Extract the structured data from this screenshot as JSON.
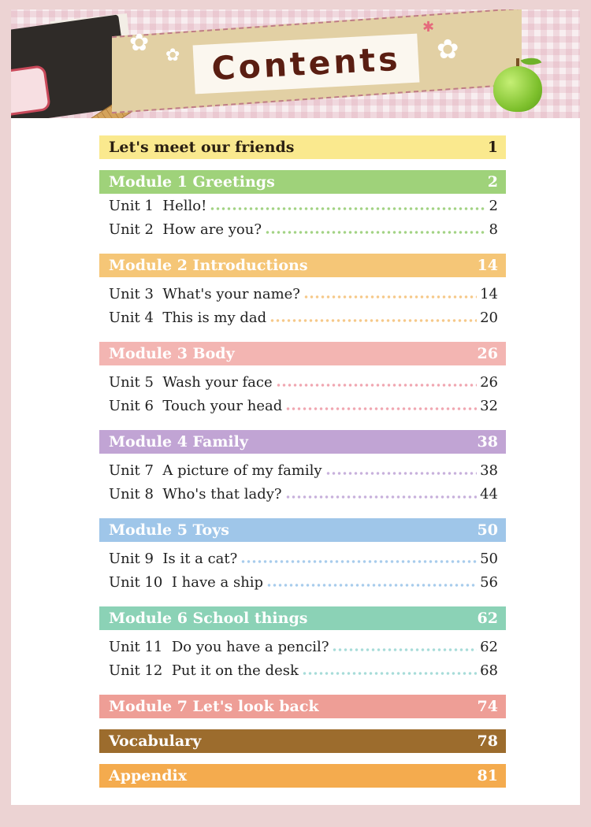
{
  "header": {
    "title": "Contents"
  },
  "toc": {
    "intro": {
      "label": "Let's meet our friends",
      "page": "1"
    },
    "modules": [
      {
        "label": "Module 1  Greetings",
        "page": "2",
        "units": [
          {
            "label": "Unit 1  Hello!",
            "page": "2"
          },
          {
            "label": "Unit 2  How are you?",
            "page": "8"
          }
        ]
      },
      {
        "label": "Module 2  Introductions",
        "page": "14",
        "units": [
          {
            "label": "Unit 3  What's your name?",
            "page": "14"
          },
          {
            "label": "Unit 4  This is my dad",
            "page": "20"
          }
        ]
      },
      {
        "label": "Module 3  Body",
        "page": "26",
        "units": [
          {
            "label": "Unit 5  Wash your face",
            "page": "26"
          },
          {
            "label": "Unit 6  Touch your head",
            "page": "32"
          }
        ]
      },
      {
        "label": "Module 4  Family",
        "page": "38",
        "units": [
          {
            "label": "Unit 7  A picture of my family",
            "page": "38"
          },
          {
            "label": "Unit 8  Who's that lady?",
            "page": "44"
          }
        ]
      },
      {
        "label": "Module 5  Toys",
        "page": "50",
        "units": [
          {
            "label": "Unit 9  Is it a cat?",
            "page": "50"
          },
          {
            "label": "Unit 10  I have a ship",
            "page": "56"
          }
        ]
      },
      {
        "label": "Module 6  School things",
        "page": "62",
        "units": [
          {
            "label": "Unit 11  Do you have a pencil?",
            "page": "62"
          },
          {
            "label": "Unit 12  Put it on the desk",
            "page": "68"
          }
        ]
      },
      {
        "label": "Module 7  Let's look back",
        "page": "74",
        "units": []
      }
    ],
    "vocabulary": {
      "label": "Vocabulary",
      "page": "78"
    },
    "appendix": {
      "label": "Appendix",
      "page": "81"
    }
  }
}
